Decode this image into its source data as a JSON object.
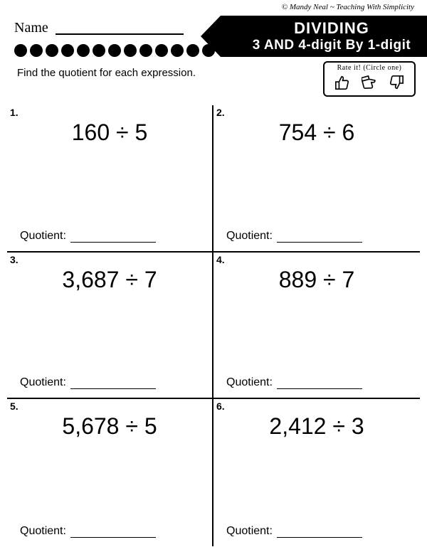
{
  "copyright": "© Mandy Neal ~ Teaching With Simplicity",
  "name_label": "Name",
  "title": {
    "line1": "DIVIDING",
    "line2": "3 AND 4-digit By 1-digit"
  },
  "dot_count": 14,
  "instruction": "Find the quotient for each expression.",
  "rate_box": {
    "title": "Rate it! (Circle one)"
  },
  "quotient_label": "Quotient:",
  "problems": [
    {
      "num": "1.",
      "expr": "160 ÷ 5"
    },
    {
      "num": "2.",
      "expr": "754 ÷ 6"
    },
    {
      "num": "3.",
      "expr": "3,687 ÷ 7"
    },
    {
      "num": "4.",
      "expr": "889 ÷ 7"
    },
    {
      "num": "5.",
      "expr": "5,678 ÷ 5"
    },
    {
      "num": "6.",
      "expr": "2,412 ÷ 3"
    }
  ]
}
